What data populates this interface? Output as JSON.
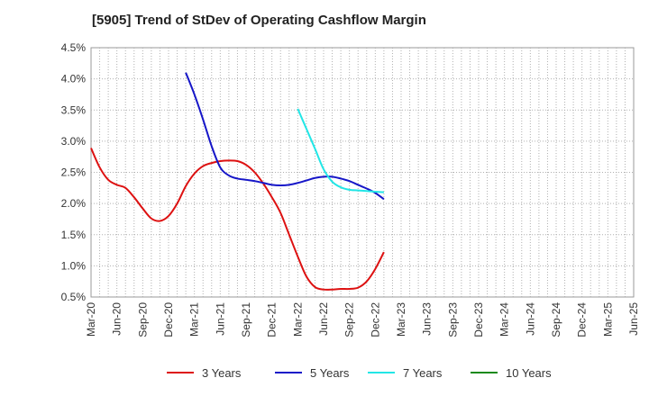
{
  "chart_data": {
    "type": "line",
    "title": "[5905]  Trend of StDev of Operating Cashflow Margin",
    "xlabel": "",
    "ylabel": "",
    "x_ticks": [
      "Mar-20",
      "Jun-20",
      "Sep-20",
      "Dec-20",
      "Mar-21",
      "Jun-21",
      "Sep-21",
      "Dec-21",
      "Mar-22",
      "Jun-22",
      "Sep-22",
      "Dec-22",
      "Mar-23",
      "Jun-23",
      "Sep-23",
      "Dec-23",
      "Mar-24",
      "Jun-24",
      "Sep-24",
      "Dec-24",
      "Mar-25",
      "Jun-25"
    ],
    "y_ticks": [
      "0.5%",
      "1.0%",
      "1.5%",
      "2.0%",
      "2.5%",
      "3.0%",
      "3.5%",
      "4.0%",
      "4.5%"
    ],
    "ylim": [
      0.5,
      4.5
    ],
    "grid": true,
    "legend_position": "bottom",
    "series": [
      {
        "name": "3 Years",
        "color": "#dd1111",
        "values": [
          2.89,
          2.58,
          2.38,
          2.3,
          2.25,
          2.1,
          1.92,
          1.76,
          1.72,
          1.8,
          2.0,
          2.28,
          2.48,
          2.6,
          2.65,
          2.68,
          2.69,
          2.68,
          2.62,
          2.5,
          2.32,
          2.1,
          1.85,
          1.5,
          1.15,
          0.83,
          0.66,
          0.62,
          0.62,
          0.63,
          0.63,
          0.65,
          0.75,
          0.95,
          1.22
        ]
      },
      {
        "name": "5 Years",
        "color": "#1616c8",
        "values": [
          null,
          null,
          null,
          null,
          null,
          null,
          null,
          null,
          null,
          null,
          null,
          4.1,
          3.75,
          3.35,
          2.92,
          2.58,
          2.45,
          2.4,
          2.38,
          2.36,
          2.33,
          2.3,
          2.29,
          2.3,
          2.33,
          2.37,
          2.41,
          2.43,
          2.43,
          2.4,
          2.36,
          2.3,
          2.24,
          2.17,
          2.07
        ]
      },
      {
        "name": "7 Years",
        "color": "#22e6e6",
        "values": [
          null,
          null,
          null,
          null,
          null,
          null,
          null,
          null,
          null,
          null,
          null,
          null,
          null,
          null,
          null,
          null,
          null,
          null,
          null,
          null,
          null,
          null,
          null,
          null,
          3.52,
          3.2,
          2.88,
          2.55,
          2.35,
          2.26,
          2.22,
          2.21,
          2.2,
          2.19,
          2.18
        ]
      },
      {
        "name": "10 Years",
        "color": "#1a8a1a",
        "values": []
      }
    ]
  }
}
